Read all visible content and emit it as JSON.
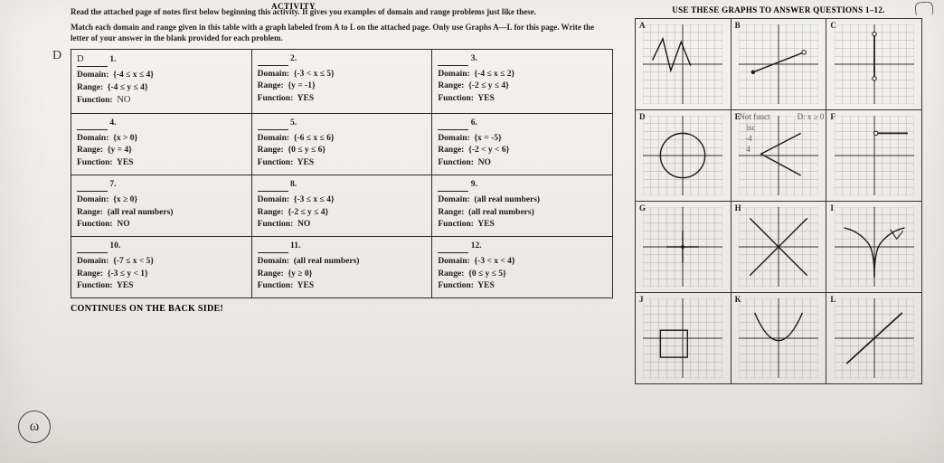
{
  "activity_tag": "ACTIVITY",
  "intro_line1": "Read the attached page of notes first below beginning this activity. It gives you examples of domain and range problems just like these.",
  "intro_line2": "Match each domain and range given in this table with a graph labeled from A to L on the attached page. Only use Graphs A—L for this page. Write the letter of your answer in the blank provided for each problem.",
  "right_head": "USE THESE GRAPHS TO ANSWER QUESTIONS 1–12.",
  "cells": [
    {
      "n": "1.",
      "hand": "D",
      "d": "{-4 ≤ x ≤ 4}",
      "r": "{-4 ≤ y ≤ 4}",
      "f": "NO",
      "fhand": true
    },
    {
      "n": "2.",
      "d": "{-3 < x ≤ 5}",
      "r": "{y = -1}",
      "f": "YES"
    },
    {
      "n": "3.",
      "d": "{-4 ≤ x ≤ 2}",
      "r": "{-2 ≤ y ≤ 4}",
      "f": "YES"
    },
    {
      "n": "4.",
      "d": "{x > 0}",
      "r": "{y = 4}",
      "f": "YES"
    },
    {
      "n": "5.",
      "d": "{-6 ≤ x ≤ 6}",
      "r": "{0 ≤ y ≤ 6}",
      "f": "YES"
    },
    {
      "n": "6.",
      "d": "{x = -5}",
      "r": "{-2 < y < 6}",
      "f": "NO"
    },
    {
      "n": "7.",
      "d": "{x ≥ 0}",
      "r": "(all real numbers)",
      "f": "NO"
    },
    {
      "n": "8.",
      "d": "{-3 ≤ x ≤ 4}",
      "r": "{-2 ≤ y ≤ 4}",
      "f": "NO"
    },
    {
      "n": "9.",
      "d": "(all real numbers)",
      "r": "(all real numbers)",
      "f": "YES"
    },
    {
      "n": "10.",
      "d": "{-7 ≤ x < 5}",
      "r": "{-3 ≤ y < 1}",
      "f": "YES"
    },
    {
      "n": "11.",
      "d": "(all real numbers)",
      "r": "{y ≥ 0}",
      "f": "YES"
    },
    {
      "n": "12.",
      "d": "{-3 < x < 4}",
      "r": "{0 ≤ y ≤ 5}",
      "f": "YES"
    }
  ],
  "continues": "CONTINUES ON THE BACK SIDE!",
  "graph_labels": [
    "A",
    "B",
    "C",
    "D",
    "E",
    "F",
    "G",
    "H",
    "I",
    "J",
    "K",
    "L"
  ],
  "hand_D_marks": {
    "notfunct": "Not funct",
    "isc": "isc",
    "neg4": "-4",
    "four": "4",
    "dxy": "D: x ≥ 0"
  },
  "circle_w": "ω",
  "style": {
    "grid_color": "#9a9a9a",
    "axis_color": "#2e2e2e",
    "curve_color": "#1a1a1a",
    "curve_width": 1.6,
    "grid_width": 0.4
  }
}
